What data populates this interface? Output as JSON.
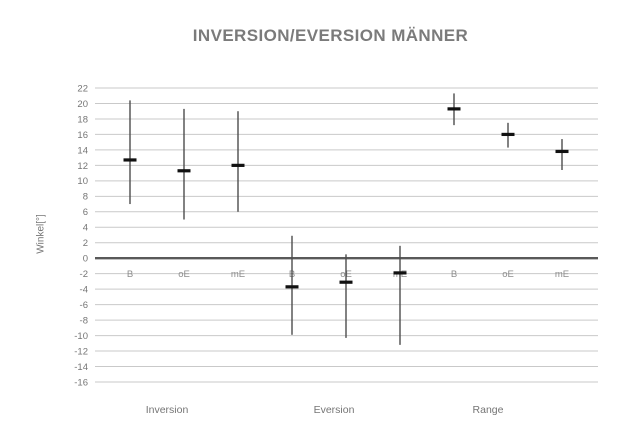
{
  "page": {
    "background": "#ffffff"
  },
  "chart_data": {
    "type": "scatter",
    "variant": "high-low-median-whiskers",
    "title": "INVERSION/EVERSION MÄNNER",
    "ylabel": "Winkel[°]",
    "ylim": [
      -16,
      22
    ],
    "ytick_step": 2,
    "yticks": [
      22,
      20,
      18,
      16,
      14,
      12,
      10,
      8,
      6,
      4,
      2,
      0,
      -2,
      -4,
      -6,
      -8,
      -10,
      -12,
      -14,
      -16
    ],
    "grid": true,
    "legend_position": "none",
    "category_label_value": -2,
    "groups": [
      {
        "label": "Inversion",
        "points": [
          {
            "label": "B",
            "high": 20.4,
            "low": 7.0,
            "median": 12.7
          },
          {
            "label": "oE",
            "high": 19.3,
            "low": 5.0,
            "median": 11.3
          },
          {
            "label": "mE",
            "high": 19.0,
            "low": 6.0,
            "median": 12.0
          }
        ]
      },
      {
        "label": "Eversion",
        "points": [
          {
            "label": "B",
            "high": 2.9,
            "low": -9.9,
            "median": -3.7
          },
          {
            "label": "oE",
            "high": 0.5,
            "low": -10.3,
            "median": -3.1
          },
          {
            "label": "mE",
            "high": 1.6,
            "low": -11.2,
            "median": -1.9
          }
        ]
      },
      {
        "label": "Range",
        "points": [
          {
            "label": "B",
            "high": 21.3,
            "low": 17.2,
            "median": 19.3
          },
          {
            "label": "oE",
            "high": 17.5,
            "low": 14.3,
            "median": 16.0
          },
          {
            "label": "mE",
            "high": 15.4,
            "low": 11.4,
            "median": 13.8
          }
        ]
      }
    ],
    "colors": {
      "title": "#7b7b7b",
      "axis_text": "#757575",
      "gridline": "#c9c9c9",
      "zero_line": "#595959",
      "whisker": "#4d4d4d",
      "median_marker": "#111111",
      "category_label": "#8c8c8c",
      "group_label": "#757575"
    }
  }
}
